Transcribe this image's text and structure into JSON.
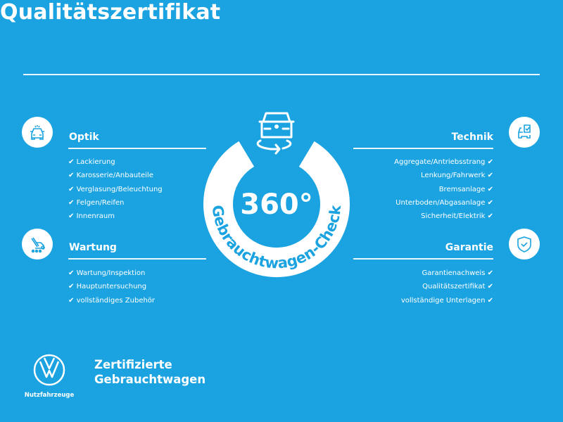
{
  "title": "Qualitätszertifikat",
  "colors": {
    "background": "#1ba3e1",
    "foreground": "#ffffff"
  },
  "check_mark": "✔",
  "center": {
    "label": "360°",
    "ring_text": "Gebrauchtwagen-Check",
    "icon": "car-rotate-icon"
  },
  "sections": {
    "optik": {
      "heading": "Optik",
      "icon": "car-front-icon",
      "items": [
        "Lackierung",
        "Karosserie/Anbauteile",
        "Verglasung/Beleuchtung",
        "Felgen/Reifen",
        "Innenraum"
      ]
    },
    "wartung": {
      "heading": "Wartung",
      "icon": "service-van-icon",
      "items": [
        "Wartung/Inspektion",
        "Hauptuntersuchung",
        "vollständiges Zubehör"
      ]
    },
    "technik": {
      "heading": "Technik",
      "icon": "car-checklist-icon",
      "items": [
        "Aggregate/Antriebsstrang",
        "Lenkung/Fahrwerk",
        "Bremsanlage",
        "Unterboden/Abgasanlage",
        "Sicherheit/Elektrik"
      ]
    },
    "garantie": {
      "heading": "Garantie",
      "icon": "shield-check-icon",
      "items": [
        "Garantienachweis",
        "Qualitätszertifikat",
        "vollständige Unterlagen"
      ]
    }
  },
  "footer": {
    "brand": "Nutzfahrzeuge",
    "cert_line1": "Zertifizierte",
    "cert_line2": "Gebrauchtwagen"
  }
}
